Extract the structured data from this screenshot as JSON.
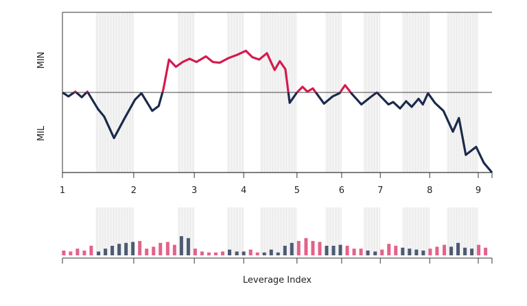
{
  "chart_data": [
    {
      "type": "line",
      "xlabel_top": "MIN",
      "xlabel_bottom": "MIL",
      "x": [
        0,
        1.4,
        3.0,
        4.5,
        5.8,
        8.3,
        9.7,
        12.0,
        14.5,
        16.9,
        18.4,
        20.9,
        22.4,
        23.5,
        24.8,
        26.4,
        28.0,
        29.6,
        31.2,
        33.4,
        35.0,
        36.6,
        38.7,
        40.7,
        42.7,
        44.2,
        45.8,
        47.6,
        49.4,
        50.6,
        51.9,
        52.9,
        54.6,
        55.9,
        57.0,
        58.3,
        60.9,
        62.9,
        64.5,
        65.8,
        67.4,
        69.6,
        71.7,
        73.2,
        75.9,
        77.0,
        78.6,
        80.0,
        81.3,
        82.9,
        83.9,
        85.1,
        86.7,
        88.7,
        90.9,
        92.3,
        93.9,
        96.3,
        98.1,
        100
      ],
      "values": [
        0,
        -5,
        1,
        -6,
        1,
        -21,
        -30,
        -57,
        -32,
        -9,
        -1,
        -23,
        -17,
        4,
        41,
        32,
        38,
        42,
        38,
        45,
        38,
        37,
        43,
        47,
        52,
        44,
        41,
        49,
        28,
        39,
        29,
        -13,
        0,
        7,
        1,
        5,
        -14,
        -5,
        -1,
        9,
        -2,
        -15,
        -6,
        0,
        -15,
        -12,
        -20,
        -11,
        -18,
        -8,
        -15,
        -1,
        -13,
        -23,
        -49,
        -32,
        -78,
        -68,
        -88,
        -100
      ],
      "color_above": "#d41a4e",
      "color_below": "#1b2a4b",
      "xlim": [
        0,
        100
      ],
      "ylim": [
        -100,
        100
      ],
      "xticks": [
        {
          "value": 0,
          "label": "1"
        },
        {
          "value": 16.6,
          "label": "2"
        },
        {
          "value": 30.7,
          "label": "3"
        },
        {
          "value": 42.2,
          "label": "4"
        },
        {
          "value": 54.6,
          "label": "5"
        },
        {
          "value": 65.0,
          "label": "6"
        },
        {
          "value": 74.0,
          "label": "7"
        },
        {
          "value": 85.5,
          "label": "8"
        },
        {
          "value": 96.8,
          "label": "9"
        }
      ],
      "bands": [
        [
          7.7,
          16.6
        ],
        [
          26.8,
          30.7
        ],
        [
          38.3,
          42.2
        ],
        [
          46.0,
          54.6
        ],
        [
          61.2,
          65.0
        ],
        [
          70.1,
          74.0
        ],
        [
          79.1,
          85.5
        ],
        [
          89.5,
          96.8
        ]
      ]
    },
    {
      "type": "bar",
      "xlabel": "Leverage Index",
      "x": [
        0.3,
        1.9,
        3.5,
        5.1,
        6.7,
        8.4,
        10.0,
        11.6,
        13.2,
        14.8,
        16.4,
        18.0,
        19.6,
        21.2,
        22.8,
        24.5,
        26.1,
        27.7,
        29.3,
        30.9,
        32.5,
        34.1,
        35.7,
        37.3,
        38.9,
        40.6,
        42.2,
        43.8,
        45.4,
        47.0,
        48.6,
        50.2,
        51.8,
        53.4,
        55.0,
        56.7,
        58.3,
        59.9,
        61.5,
        63.1,
        64.7,
        66.3,
        67.9,
        69.5,
        71.1,
        72.8,
        74.4,
        76.0,
        77.6,
        79.2,
        80.8,
        82.4,
        84.0,
        85.6,
        87.2,
        88.9,
        90.5,
        92.1,
        93.7,
        95.3,
        96.9,
        98.5
      ],
      "values": [
        10,
        8,
        14,
        10,
        20,
        8,
        14,
        20,
        24,
        26,
        28,
        30,
        14,
        18,
        26,
        28,
        22,
        40,
        36,
        14,
        8,
        6,
        6,
        8,
        12,
        8,
        8,
        12,
        6,
        6,
        12,
        6,
        20,
        26,
        30,
        36,
        30,
        28,
        20,
        20,
        22,
        20,
        14,
        14,
        10,
        8,
        12,
        24,
        20,
        16,
        14,
        12,
        10,
        14,
        18,
        22,
        18,
        26,
        16,
        14,
        22,
        16
      ],
      "color": "#e4628a",
      "band_color": "#4e5a73",
      "ylim": [
        0,
        100
      ]
    }
  ]
}
